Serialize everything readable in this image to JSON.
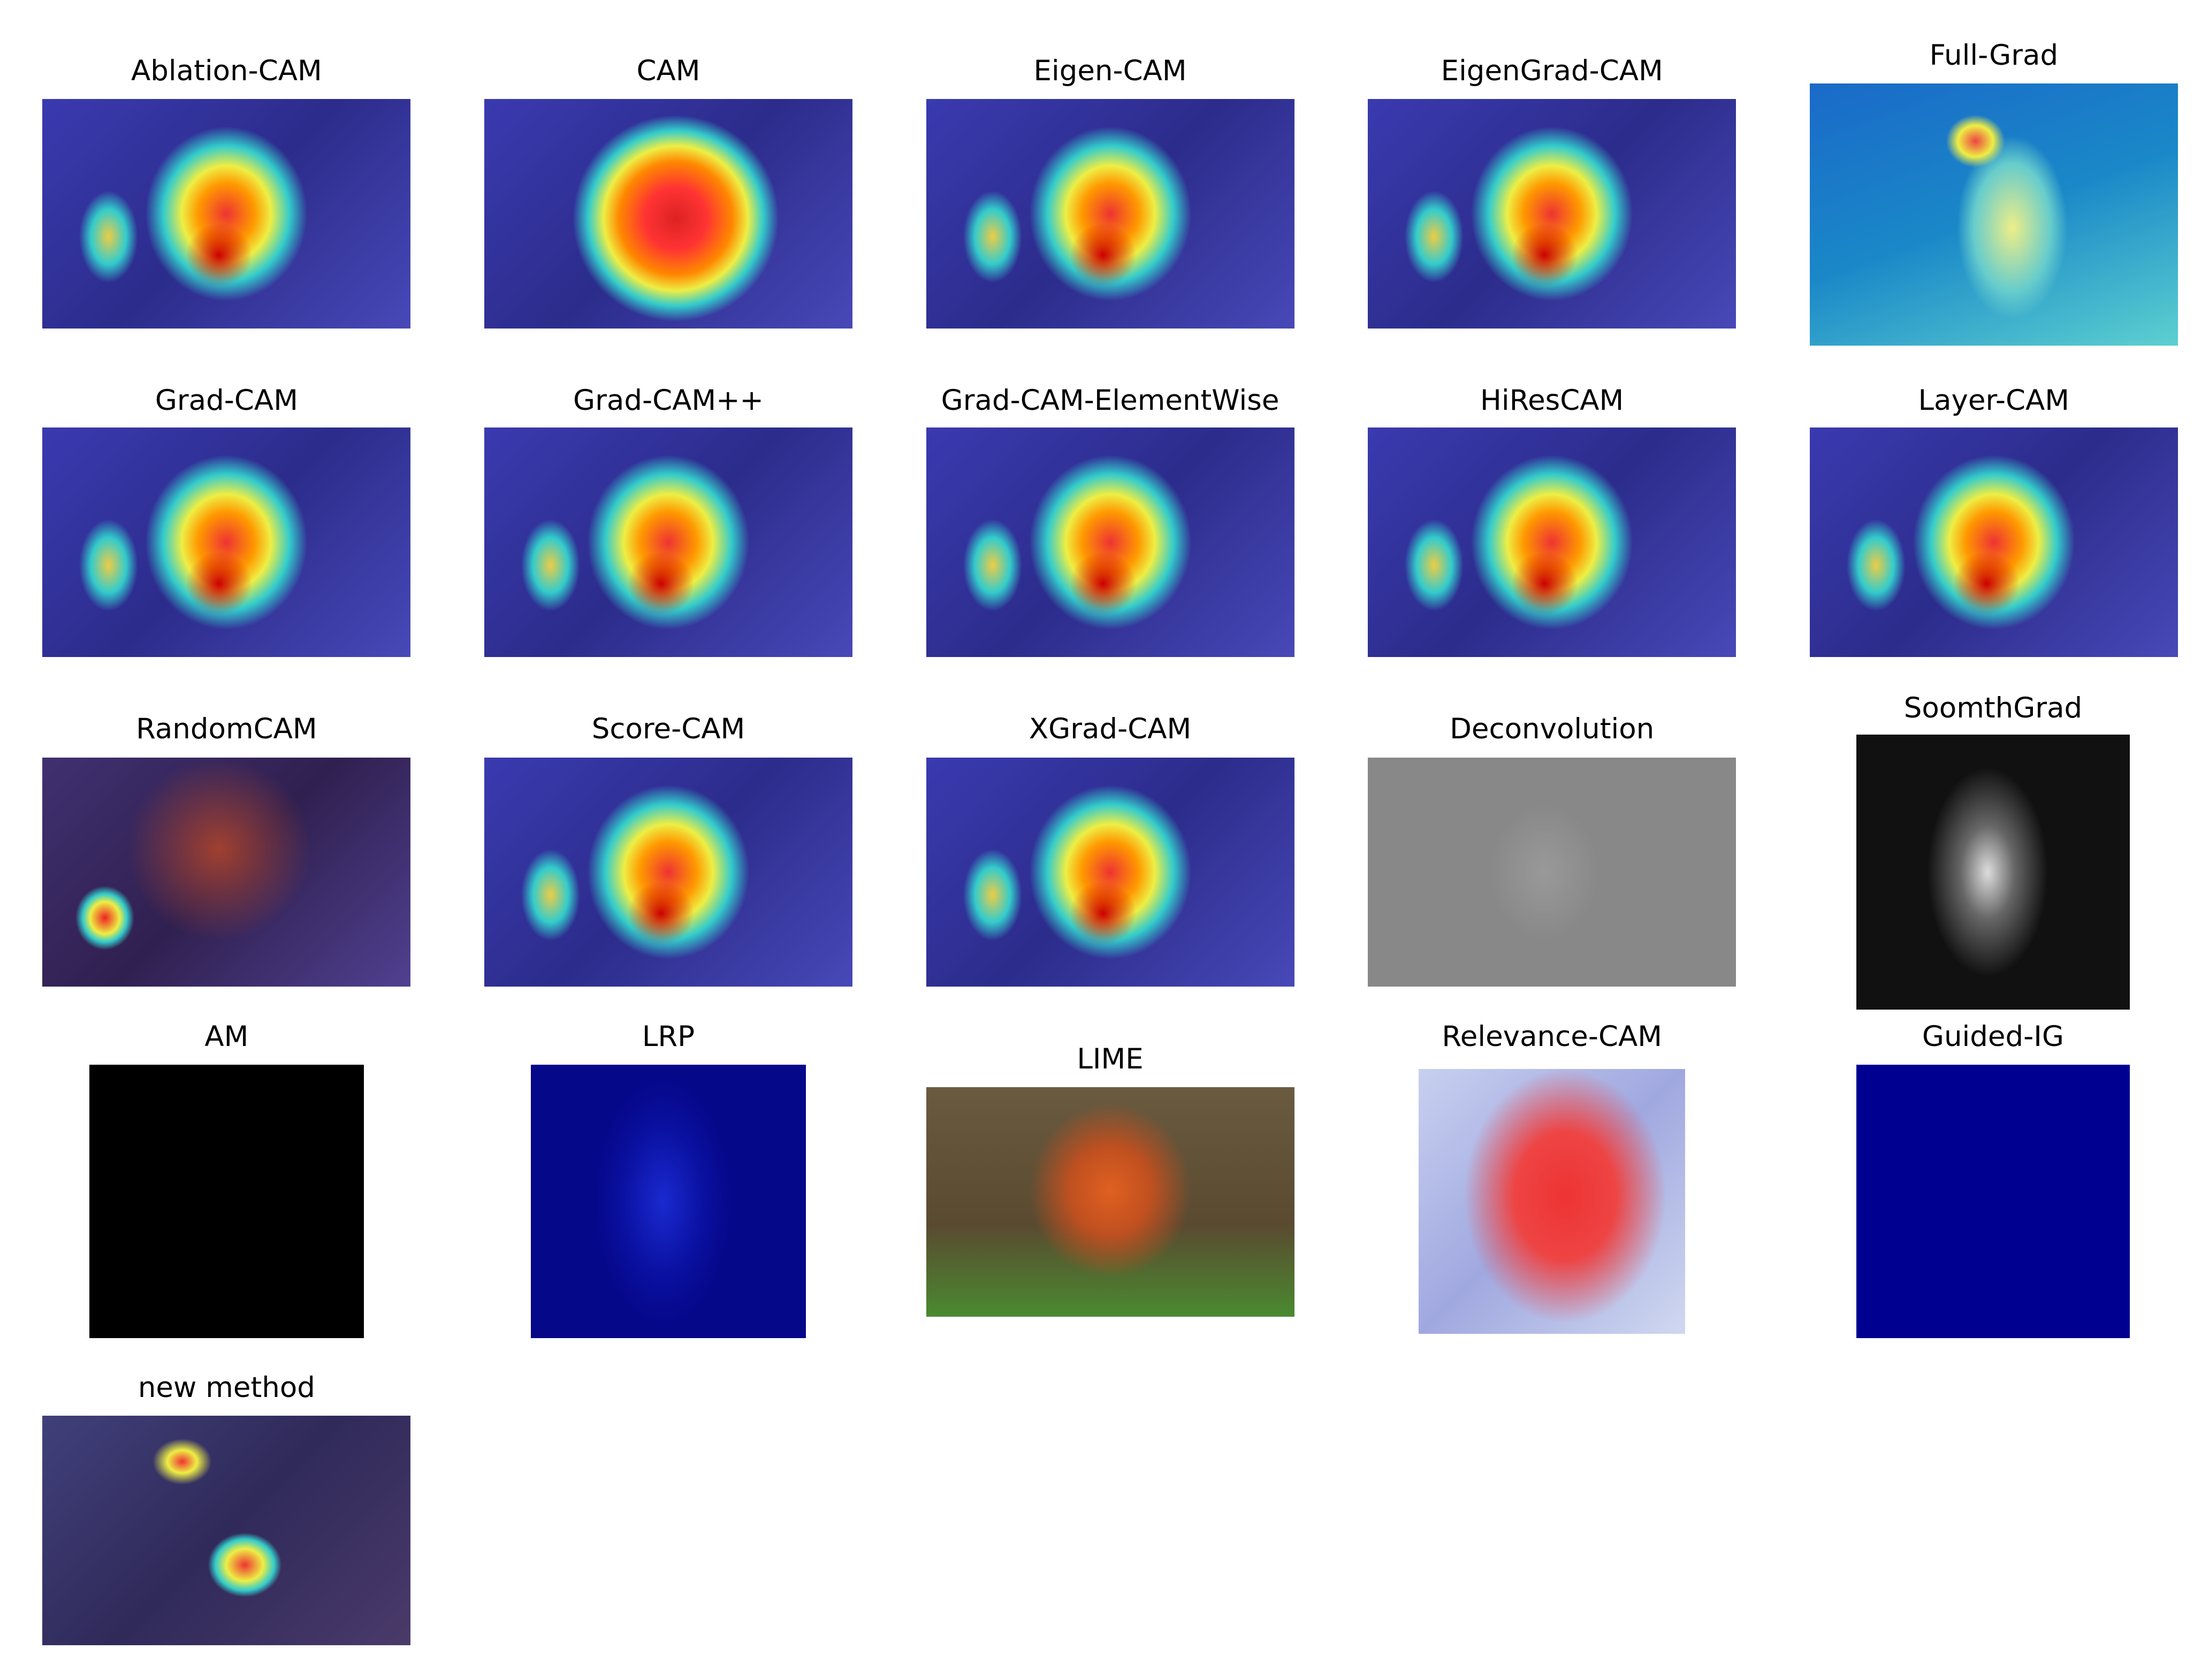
{
  "panels": [
    {
      "title": "Ablation-CAM"
    },
    {
      "title": "CAM"
    },
    {
      "title": "Eigen-CAM"
    },
    {
      "title": "EigenGrad-CAM"
    },
    {
      "title": "Full-Grad"
    },
    {
      "title": "Grad-CAM"
    },
    {
      "title": "Grad-CAM++"
    },
    {
      "title": "Grad-CAM-ElementWise"
    },
    {
      "title": "HiResCAM"
    },
    {
      "title": "Layer-CAM"
    },
    {
      "title": "RandomCAM"
    },
    {
      "title": "Score-CAM"
    },
    {
      "title": "XGrad-CAM"
    },
    {
      "title": "Deconvolution"
    },
    {
      "title": "SoomthGrad"
    },
    {
      "title": "AM"
    },
    {
      "title": "LRP"
    },
    {
      "title": "LIME"
    },
    {
      "title": "Relevance-CAM"
    },
    {
      "title": "Guided-IG"
    },
    {
      "title": "new method"
    }
  ]
}
